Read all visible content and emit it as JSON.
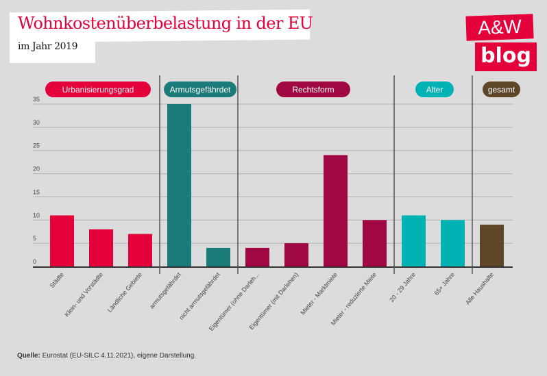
{
  "header": {
    "title": "Wohnkostenüberbelastung in der EU",
    "subtitle": "im Jahr 2019"
  },
  "logo": {
    "line1": "A&W",
    "line2": "blog"
  },
  "source": {
    "label": "Quelle:",
    "text": " Eurostat (EU-SILC 4.11.2021), eigene Darstellung."
  },
  "chart_data": {
    "type": "bar",
    "title": "",
    "xlabel": "",
    "ylabel": "",
    "ylim": [
      0,
      35
    ],
    "yticks": [
      0,
      5,
      10,
      15,
      20,
      25,
      30,
      35
    ],
    "grid": true,
    "categories": [
      "Städte",
      "Klein- und Vorstädte",
      "Ländliche Gebiete",
      "armutsgefährdet",
      "nicht armutsgefährdet",
      "Eigentümer (ohne Darleh...",
      "Eigentümer (mit Darlehen)",
      "Mieter - Marktmiete",
      "Mieter - reduzierte Miete",
      "20 - 29 Jahre",
      "65+ Jahre",
      "Alle Haushalte"
    ],
    "values": [
      11,
      8,
      7,
      35,
      4,
      4,
      5,
      24,
      10,
      11,
      10,
      9
    ],
    "groups": [
      {
        "name": "Urbanisierungsgrad",
        "color": "#e4003a",
        "count": 3
      },
      {
        "name": "Armutsgefährdet",
        "color": "#1b7b78",
        "count": 2
      },
      {
        "name": "Rechtsform",
        "color": "#a00842",
        "count": 4
      },
      {
        "name": "Alter",
        "color": "#00b2b4",
        "count": 2
      },
      {
        "name": "gesamt",
        "color": "#5e4628",
        "count": 1
      }
    ]
  }
}
